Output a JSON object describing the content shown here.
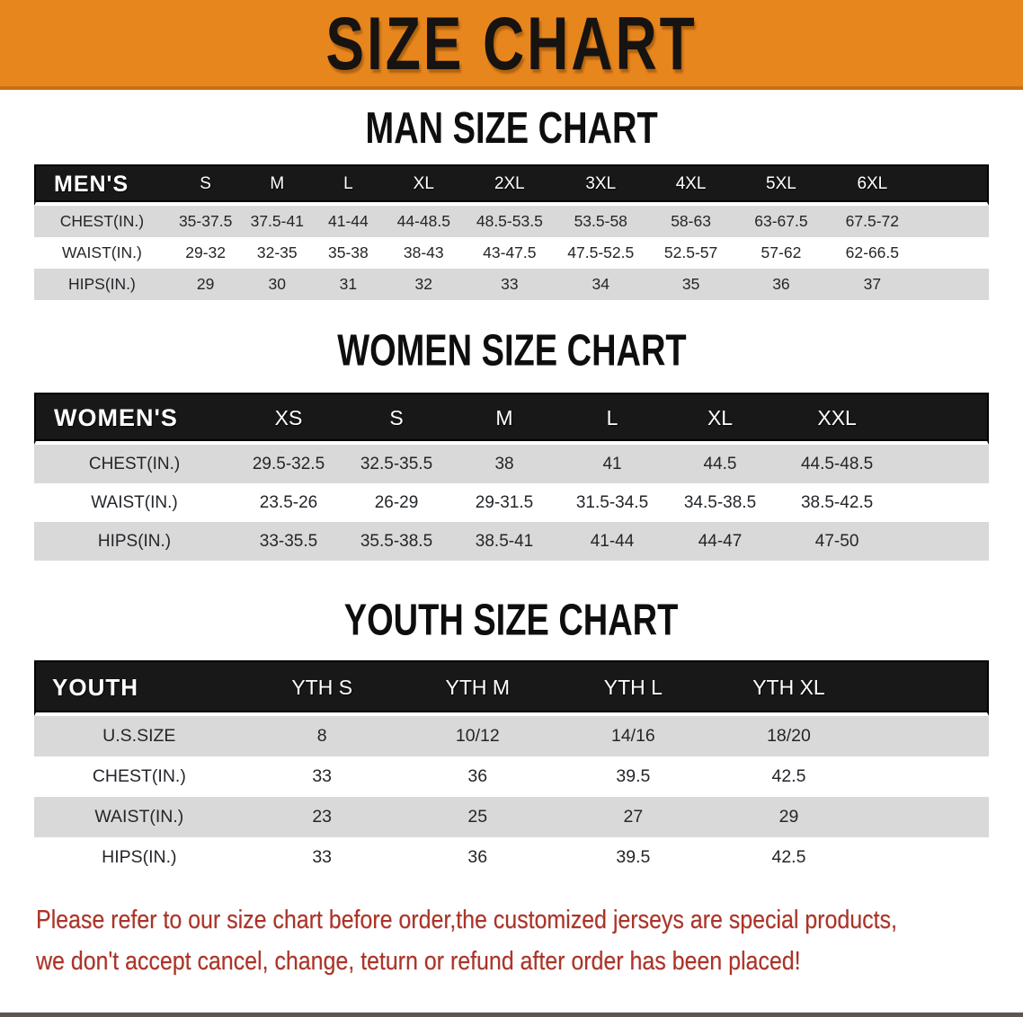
{
  "banner": {
    "title": "SIZE CHART"
  },
  "sections": [
    {
      "id": "men",
      "heading": "MAN SIZE CHART",
      "table": {
        "corner_label": "MEN'S",
        "columns": [
          "S",
          "M",
          "L",
          "XL",
          "2XL",
          "3XL",
          "4XL",
          "5XL",
          "6XL"
        ],
        "rows": [
          {
            "label": "CHEST(IN.)",
            "values": [
              "35-37.5",
              "37.5-41",
              "41-44",
              "44-48.5",
              "48.5-53.5",
              "53.5-58",
              "58-63",
              "63-67.5",
              "67.5-72"
            ]
          },
          {
            "label": "WAIST(IN.)",
            "values": [
              "29-32",
              "32-35",
              "35-38",
              "38-43",
              "43-47.5",
              "47.5-52.5",
              "52.5-57",
              "57-62",
              "62-66.5"
            ]
          },
          {
            "label": "HIPS(IN.)",
            "values": [
              "29",
              "30",
              "31",
              "32",
              "33",
              "34",
              "35",
              "36",
              "37"
            ]
          }
        ]
      }
    },
    {
      "id": "women",
      "heading": "WOMEN SIZE CHART",
      "table": {
        "corner_label": "WOMEN'S",
        "columns": [
          "XS",
          "S",
          "M",
          "L",
          "XL",
          "XXL"
        ],
        "rows": [
          {
            "label": "CHEST(IN.)",
            "values": [
              "29.5-32.5",
              "32.5-35.5",
              "38",
              "41",
              "44.5",
              "44.5-48.5"
            ]
          },
          {
            "label": "WAIST(IN.)",
            "values": [
              "23.5-26",
              "26-29",
              "29-31.5",
              "31.5-34.5",
              "34.5-38.5",
              "38.5-42.5"
            ]
          },
          {
            "label": "HIPS(IN.)",
            "values": [
              "33-35.5",
              "35.5-38.5",
              "38.5-41",
              "41-44",
              "44-47",
              "47-50"
            ]
          }
        ]
      }
    },
    {
      "id": "youth",
      "heading": "YOUTH SIZE CHART",
      "table": {
        "corner_label": "YOUTH",
        "columns": [
          "YTH S",
          "YTH M",
          "YTH L",
          "YTH XL"
        ],
        "rows": [
          {
            "label": "U.S.SIZE",
            "values": [
              "8",
              "10/12",
              "14/16",
              "18/20"
            ]
          },
          {
            "label": "CHEST(IN.)",
            "values": [
              "33",
              "36",
              "39.5",
              "42.5"
            ]
          },
          {
            "label": "WAIST(IN.)",
            "values": [
              "23",
              "25",
              "27",
              "29"
            ]
          },
          {
            "label": "HIPS(IN.)",
            "values": [
              "33",
              "36",
              "39.5",
              "42.5"
            ]
          }
        ]
      }
    }
  ],
  "notice": {
    "lines": [
      "Please refer to our size chart before order,the customized jerseys are special products,",
      "we don't accept cancel, change, teturn or refund after order has been placed!"
    ]
  },
  "colors": {
    "banner_bg": "#E8861E",
    "banner_text": "#161310",
    "table_header_bg": "#181818",
    "table_header_text": "#ffffff",
    "row_alt_bg": "#D9D9D9",
    "row_text": "#23262a",
    "notice_text": "#AC3327"
  }
}
